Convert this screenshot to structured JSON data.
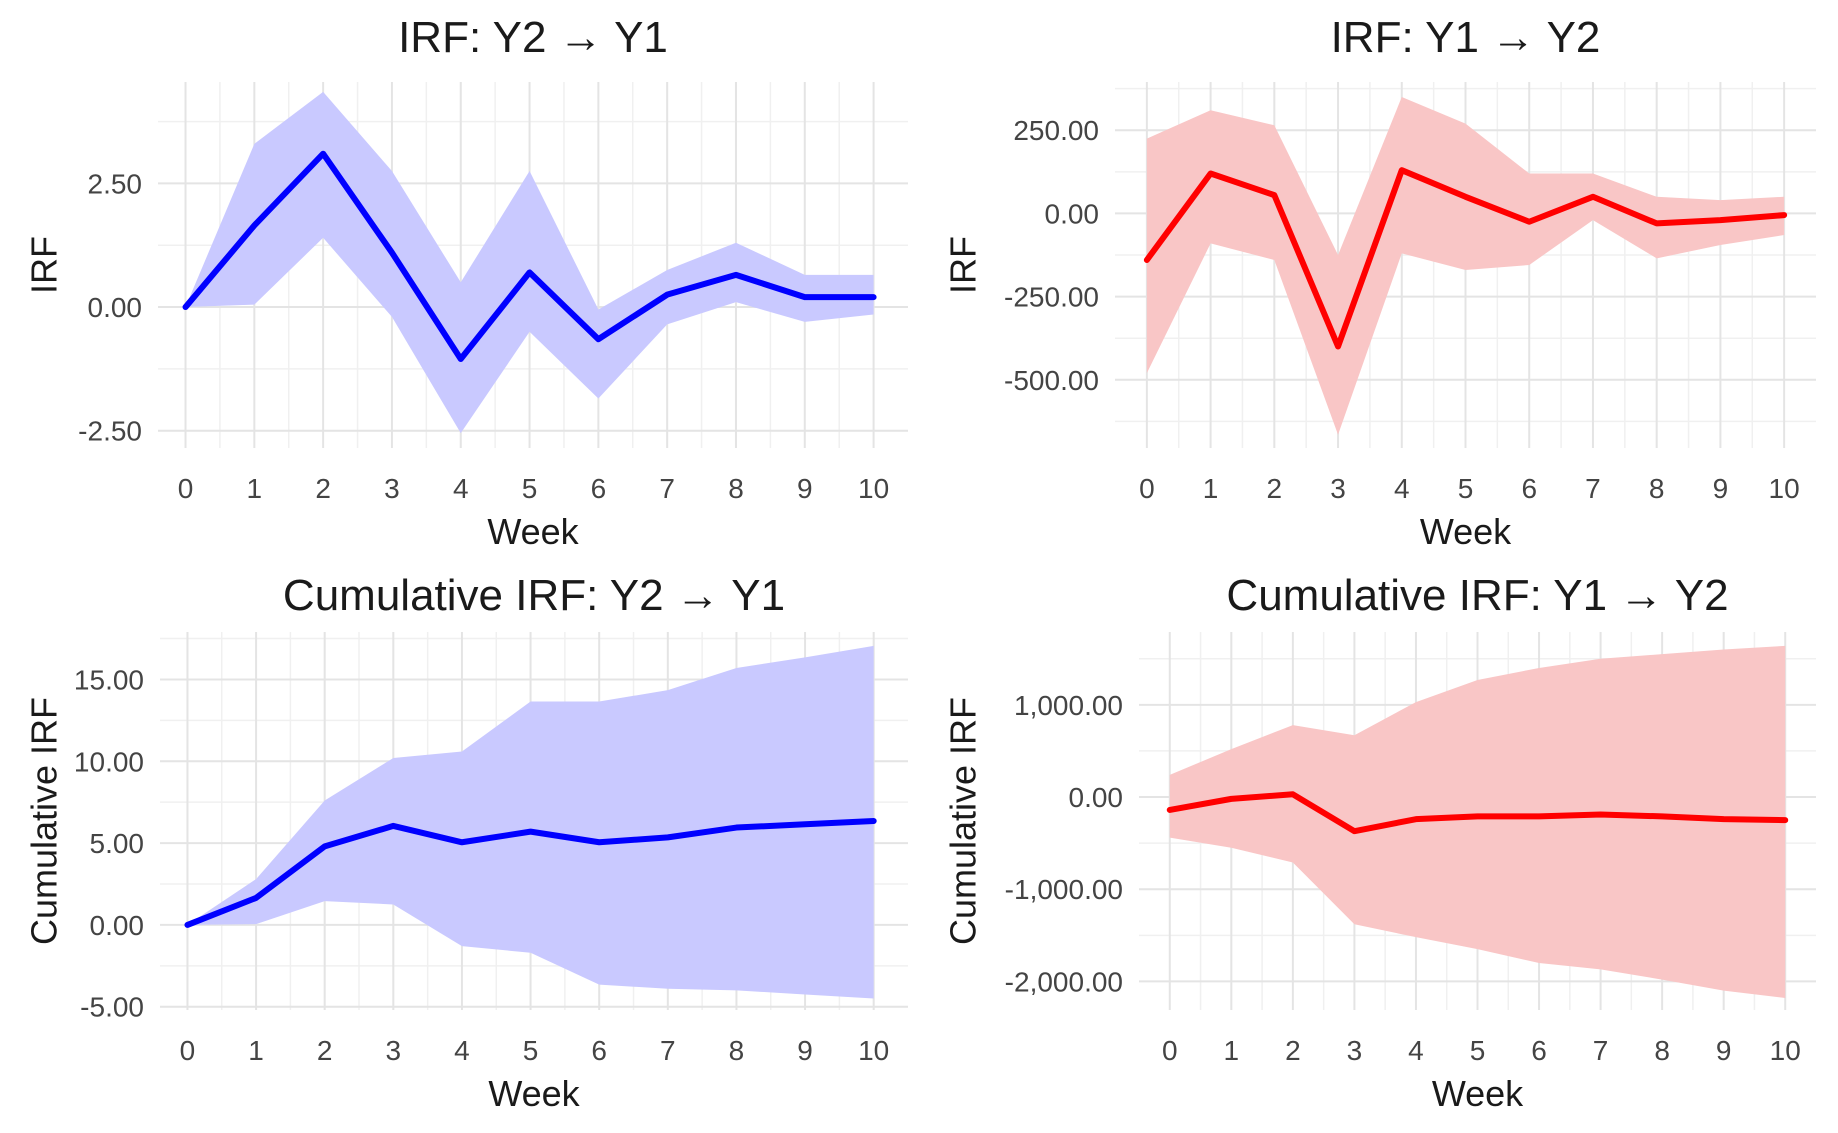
{
  "colors": {
    "blue_line": "#0000ff",
    "blue_band": "#c9c9ff",
    "red_line": "#ff0000",
    "red_band": "#f9c6c6"
  },
  "chart_data": [
    {
      "type": "line",
      "title": "IRF: Y2 → Y1",
      "xlabel": "Week",
      "ylabel": "IRF",
      "x": [
        0,
        1,
        2,
        3,
        4,
        5,
        6,
        7,
        8,
        9,
        10
      ],
      "series": [
        {
          "name": "IRF",
          "values": [
            0.0,
            1.65,
            3.1,
            1.1,
            -1.05,
            0.7,
            -0.65,
            0.25,
            0.65,
            0.2,
            0.2
          ]
        },
        {
          "name": "Lower",
          "values": [
            0.0,
            0.05,
            1.4,
            -0.2,
            -2.55,
            -0.5,
            -1.85,
            -0.35,
            0.1,
            -0.3,
            -0.15
          ]
        },
        {
          "name": "Upper",
          "values": [
            0.0,
            3.3,
            4.35,
            2.75,
            0.5,
            2.75,
            -0.05,
            0.75,
            1.3,
            0.65,
            0.65
          ]
        }
      ],
      "xlim": [
        -0.4,
        10.5
      ],
      "ylim": [
        -2.85,
        4.55
      ],
      "yticks": [
        -2.5,
        0,
        2.5
      ],
      "ytick_labels": [
        "-2.50",
        "0.00",
        "2.50"
      ],
      "xticks": [
        0,
        1,
        2,
        3,
        4,
        5,
        6,
        7,
        8,
        9,
        10
      ],
      "xtick_labels": [
        "0",
        "1",
        "2",
        "3",
        "4",
        "5",
        "6",
        "7",
        "8",
        "9",
        "10"
      ],
      "color": "blue"
    },
    {
      "type": "line",
      "title": "IRF: Y1 → Y2",
      "xlabel": "Week",
      "ylabel": "IRF",
      "x": [
        0,
        1,
        2,
        3,
        4,
        5,
        6,
        7,
        8,
        9,
        10
      ],
      "series": [
        {
          "name": "IRF",
          "values": [
            -140,
            120,
            55,
            -400,
            130,
            50,
            -25,
            50,
            -30,
            -20,
            -5
          ]
        },
        {
          "name": "Lower",
          "values": [
            -480,
            -90,
            -140,
            -665,
            -120,
            -170,
            -155,
            -20,
            -135,
            -95,
            -65
          ]
        },
        {
          "name": "Upper",
          "values": [
            225,
            310,
            265,
            -125,
            350,
            270,
            120,
            120,
            50,
            40,
            50
          ]
        }
      ],
      "xlim": [
        -0.5,
        10.5
      ],
      "ylim": [
        -705,
        395
      ],
      "yticks": [
        -500,
        -250,
        0,
        250
      ],
      "ytick_labels": [
        "-500.00",
        "-250.00",
        "0.00",
        "250.00"
      ],
      "xticks": [
        0,
        1,
        2,
        3,
        4,
        5,
        6,
        7,
        8,
        9,
        10
      ],
      "xtick_labels": [
        "0",
        "1",
        "2",
        "3",
        "4",
        "5",
        "6",
        "7",
        "8",
        "9",
        "10"
      ],
      "color": "red"
    },
    {
      "type": "line",
      "title": "Cumulative IRF: Y2 → Y1",
      "xlabel": "Week",
      "ylabel": "Cumulative IRF",
      "x": [
        0,
        1,
        2,
        3,
        4,
        5,
        6,
        7,
        8,
        9,
        10
      ],
      "series": [
        {
          "name": "Cumulative IRF",
          "values": [
            0.0,
            1.65,
            4.8,
            6.05,
            5.05,
            5.7,
            5.05,
            5.35,
            5.95,
            6.15,
            6.35
          ]
        },
        {
          "name": "Lower",
          "values": [
            0.0,
            0.05,
            1.45,
            1.25,
            -1.3,
            -1.7,
            -3.65,
            -3.9,
            -4.0,
            -4.25,
            -4.5
          ]
        },
        {
          "name": "Upper",
          "values": [
            0.0,
            2.8,
            7.6,
            10.2,
            10.6,
            13.65,
            13.65,
            14.35,
            15.7,
            16.35,
            17.05
          ]
        }
      ],
      "xlim": [
        -0.4,
        10.5
      ],
      "ylim": [
        -5.2,
        17.9
      ],
      "yticks": [
        -5,
        0,
        5,
        10,
        15
      ],
      "ytick_labels": [
        "-5.00",
        "0.00",
        "5.00",
        "10.00",
        "15.00"
      ],
      "xticks": [
        0,
        1,
        2,
        3,
        4,
        5,
        6,
        7,
        8,
        9,
        10
      ],
      "xtick_labels": [
        "0",
        "1",
        "2",
        "3",
        "4",
        "5",
        "6",
        "7",
        "8",
        "9",
        "10"
      ],
      "color": "blue"
    },
    {
      "type": "line",
      "title": "Cumulative IRF: Y1 → Y2",
      "xlabel": "Week",
      "ylabel": "Cumulative IRF",
      "x": [
        0,
        1,
        2,
        3,
        4,
        5,
        6,
        7,
        8,
        9,
        10
      ],
      "series": [
        {
          "name": "Cumulative IRF",
          "values": [
            -140,
            -20,
            30,
            -370,
            -240,
            -210,
            -210,
            -190,
            -210,
            -240,
            -250
          ]
        },
        {
          "name": "Lower",
          "values": [
            -440,
            -550,
            -710,
            -1380,
            -1520,
            -1650,
            -1800,
            -1870,
            -1980,
            -2100,
            -2180
          ]
        },
        {
          "name": "Upper",
          "values": [
            240,
            520,
            780,
            670,
            1030,
            1270,
            1400,
            1500,
            1550,
            1600,
            1640
          ]
        }
      ],
      "xlim": [
        -0.5,
        10.5
      ],
      "ylim": [
        -2310,
        1790
      ],
      "yticks": [
        -2000,
        -1000,
        0,
        1000
      ],
      "ytick_labels": [
        "-2,000.00",
        "-1,000.00",
        "0.00",
        "1,000.00"
      ],
      "xticks": [
        0,
        1,
        2,
        3,
        4,
        5,
        6,
        7,
        8,
        9,
        10
      ],
      "xtick_labels": [
        "0",
        "1",
        "2",
        "3",
        "4",
        "5",
        "6",
        "7",
        "8",
        "9",
        "10"
      ],
      "color": "red"
    }
  ]
}
